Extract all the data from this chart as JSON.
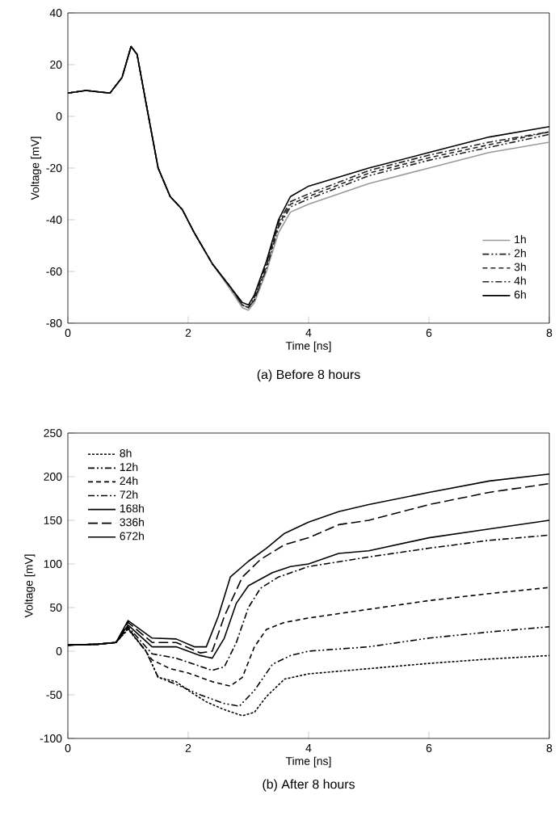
{
  "chart_data": [
    {
      "type": "line",
      "title": "(a) Before 8 hours",
      "xlabel": "Time [ns]",
      "ylabel": "Voltage [mV]",
      "xlim": [
        0,
        8
      ],
      "ylim": [
        -80,
        40
      ],
      "xticks": [
        0,
        2,
        4,
        6,
        8
      ],
      "yticks": [
        -80,
        -60,
        -40,
        -20,
        0,
        20,
        40
      ],
      "grid": false,
      "legend": "bottom right",
      "marker": "none",
      "x": [
        0,
        0.3,
        0.7,
        0.9,
        1.05,
        1.15,
        1.3,
        1.5,
        1.7,
        1.9,
        2.1,
        2.4,
        2.7,
        2.9,
        3.0,
        3.1,
        3.3,
        3.5,
        3.7,
        4,
        5,
        6,
        7,
        8
      ],
      "series": [
        {
          "name": "1h",
          "color": "#999999",
          "line_style": "solid",
          "values": [
            9,
            10,
            9,
            15,
            27,
            24,
            5,
            -20,
            -31,
            -36,
            -45,
            -57,
            -67,
            -74,
            -75,
            -72,
            -60,
            -45,
            -37,
            -34,
            -26,
            -20,
            -14,
            -10
          ]
        },
        {
          "name": "2h",
          "color": "#222222",
          "line_style": "dashdotdot",
          "values": [
            9,
            10,
            9,
            15,
            27,
            24,
            5,
            -20,
            -31,
            -36,
            -45,
            -57,
            -66,
            -73,
            -74,
            -71,
            -59,
            -43,
            -35,
            -32,
            -23,
            -17,
            -12,
            -7
          ]
        },
        {
          "name": "3h",
          "color": "#222222",
          "line_style": "dashed",
          "values": [
            9,
            10,
            9,
            15,
            27,
            24,
            5,
            -20,
            -31,
            -36,
            -45,
            -57,
            -66,
            -73,
            -74,
            -71,
            -58,
            -42,
            -34,
            -31,
            -22,
            -16,
            -11,
            -6
          ]
        },
        {
          "name": "4h",
          "color": "#222222",
          "line_style": "dashdot",
          "values": [
            9,
            10,
            9,
            15,
            27,
            24,
            5,
            -20,
            -31,
            -36,
            -45,
            -57,
            -66,
            -73,
            -74,
            -70,
            -57,
            -41,
            -33,
            -30,
            -21,
            -15,
            -10,
            -6
          ]
        },
        {
          "name": "6h",
          "color": "#000000",
          "line_style": "solid",
          "values": [
            9,
            10,
            9,
            15,
            27,
            24,
            5,
            -20,
            -31,
            -36,
            -45,
            -57,
            -66,
            -72,
            -73,
            -69,
            -56,
            -40,
            -31,
            -27,
            -20,
            -14,
            -8,
            -4
          ]
        }
      ]
    },
    {
      "type": "line",
      "title": "(b) After 8 hours",
      "xlabel": "Time [ns]",
      "ylabel": "Voltage [mV]",
      "xlim": [
        0,
        8
      ],
      "ylim": [
        -100,
        250
      ],
      "xticks": [
        0,
        2,
        4,
        6,
        8
      ],
      "yticks": [
        -100,
        -50,
        0,
        50,
        100,
        150,
        200,
        250
      ],
      "grid": false,
      "legend": "top left",
      "marker": "none",
      "series": [
        {
          "name": "8h",
          "color": "#000000",
          "line_style": "dotted",
          "x": [
            0,
            0.5,
            0.8,
            1.0,
            1.3,
            1.5,
            1.8,
            2.0,
            2.3,
            2.6,
            2.9,
            3.1,
            3.3,
            3.6,
            4,
            5,
            6,
            7,
            8
          ],
          "values": [
            7,
            8,
            10,
            25,
            0,
            -30,
            -35,
            -45,
            -58,
            -67,
            -74,
            -70,
            -52,
            -32,
            -26,
            -20,
            -14,
            -9,
            -5
          ]
        },
        {
          "name": "12h",
          "color": "#000000",
          "line_style": "dashdotdot",
          "x": [
            0,
            0.5,
            0.8,
            1.0,
            1.3,
            1.5,
            1.8,
            2.2,
            2.6,
            2.85,
            3.1,
            3.4,
            3.7,
            4,
            5,
            6,
            7,
            8
          ],
          "values": [
            7,
            8,
            10,
            26,
            0,
            -30,
            -38,
            -50,
            -60,
            -63,
            -45,
            -15,
            -5,
            0,
            5,
            15,
            22,
            28
          ]
        },
        {
          "name": "24h",
          "color": "#000000",
          "line_style": "dashed",
          "x": [
            0,
            0.5,
            0.8,
            1.0,
            1.4,
            1.7,
            2.0,
            2.4,
            2.7,
            2.9,
            3.1,
            3.3,
            3.6,
            4,
            5,
            6,
            7,
            8
          ],
          "values": [
            7,
            8,
            10,
            27,
            -10,
            -20,
            -25,
            -35,
            -40,
            -30,
            5,
            25,
            33,
            38,
            48,
            58,
            66,
            73
          ]
        },
        {
          "name": "72h",
          "color": "#000000",
          "line_style": "dashdot",
          "x": [
            0,
            0.5,
            0.8,
            1.0,
            1.4,
            1.8,
            2.1,
            2.4,
            2.6,
            2.8,
            3.0,
            3.2,
            3.5,
            4,
            5,
            6,
            7,
            8
          ],
          "values": [
            7,
            8,
            10,
            28,
            -3,
            -8,
            -15,
            -22,
            -18,
            10,
            50,
            72,
            85,
            97,
            108,
            118,
            127,
            133
          ]
        },
        {
          "name": "168h",
          "color": "#000000",
          "line_style": "solid",
          "x": [
            0,
            0.5,
            0.8,
            1.0,
            1.4,
            1.8,
            2.2,
            2.4,
            2.6,
            2.8,
            3.0,
            3.4,
            3.7,
            4,
            4.5,
            5,
            6,
            7,
            8
          ],
          "values": [
            7,
            8,
            10,
            30,
            5,
            5,
            -5,
            -8,
            15,
            55,
            75,
            90,
            97,
            100,
            112,
            115,
            130,
            140,
            150
          ]
        },
        {
          "name": "336h",
          "color": "#000000",
          "line_style": "longdash",
          "x": [
            0,
            0.5,
            0.8,
            1.0,
            1.4,
            1.8,
            2.2,
            2.4,
            2.6,
            2.9,
            3.2,
            3.6,
            4,
            4.5,
            5,
            6,
            7,
            8
          ],
          "values": [
            7,
            8,
            10,
            33,
            10,
            10,
            -2,
            0,
            40,
            85,
            105,
            122,
            130,
            145,
            150,
            168,
            182,
            192
          ]
        },
        {
          "name": "672h",
          "color": "#000000",
          "line_style": "solid",
          "x": [
            0,
            0.5,
            0.8,
            1.0,
            1.4,
            1.8,
            2.1,
            2.3,
            2.5,
            2.7,
            3.0,
            3.3,
            3.6,
            4,
            4.5,
            5,
            6,
            7,
            8
          ],
          "values": [
            7,
            8,
            10,
            35,
            15,
            14,
            5,
            5,
            40,
            85,
            103,
            118,
            135,
            148,
            160,
            168,
            182,
            195,
            203
          ]
        }
      ]
    }
  ]
}
